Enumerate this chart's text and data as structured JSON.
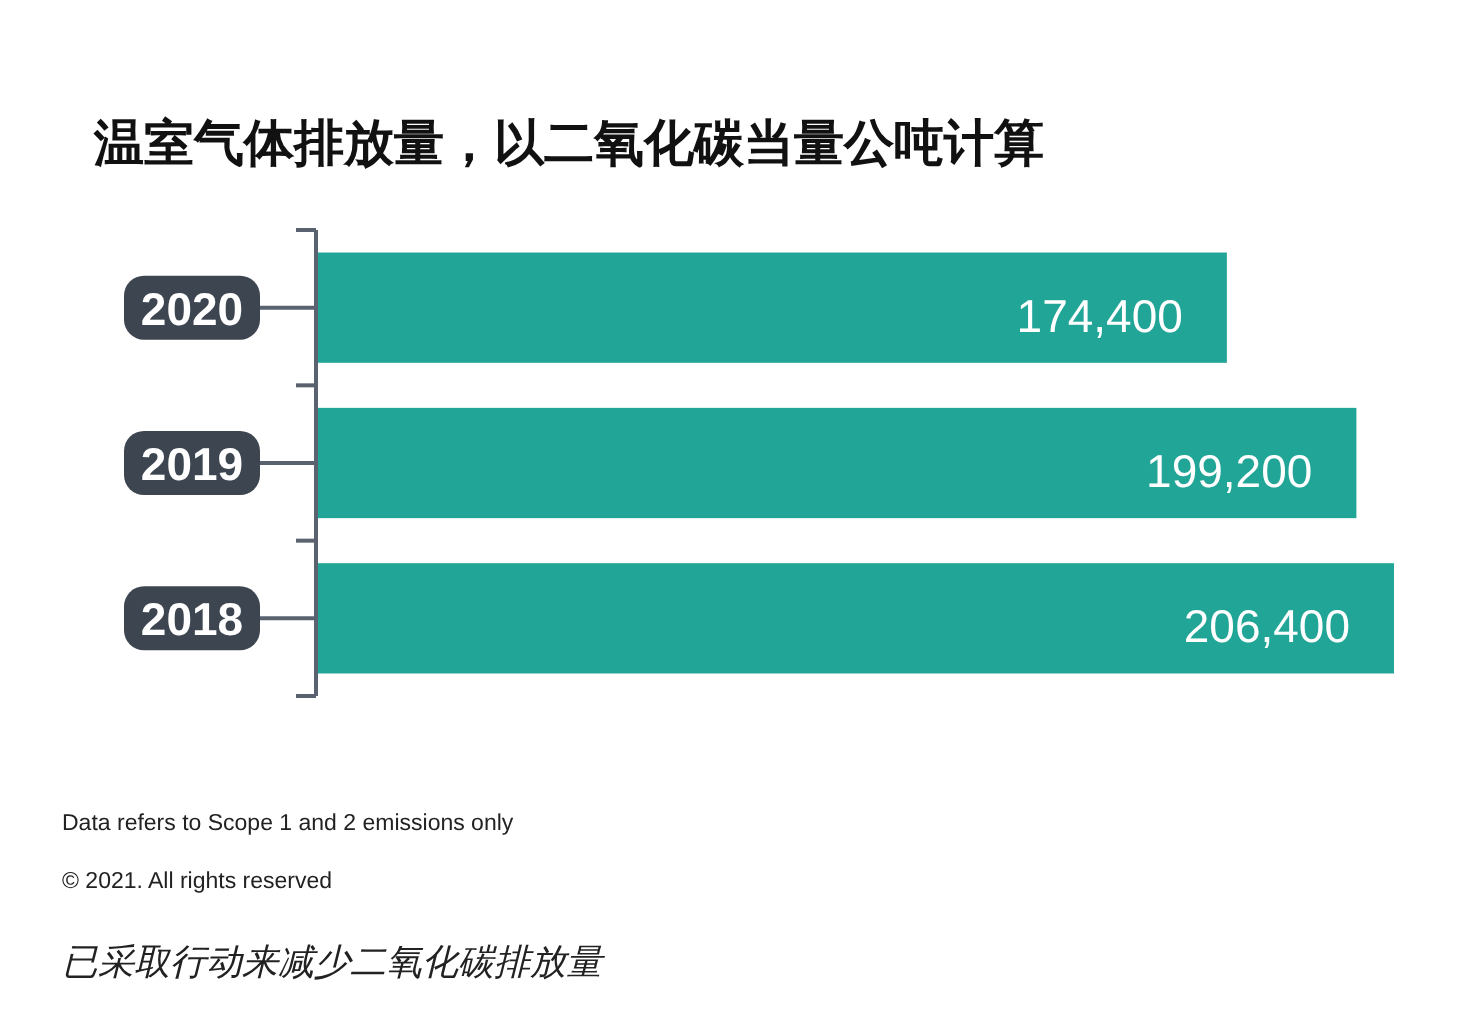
{
  "chart_data": {
    "type": "bar",
    "orientation": "horizontal",
    "title": "温室气体排放量，以二氧化碳当量公吨计算",
    "categories": [
      "2020",
      "2019",
      "2018"
    ],
    "values": [
      174400,
      199200,
      206400
    ],
    "value_labels": [
      "174,400",
      "199,200",
      "206,400"
    ],
    "color": "#20a597",
    "annotations": [
      "Data refers to Scope 1 and 2 emissions only",
      "© 2021. All rights reserved",
      "已采取行动来减少二氧化碳排放量"
    ]
  }
}
